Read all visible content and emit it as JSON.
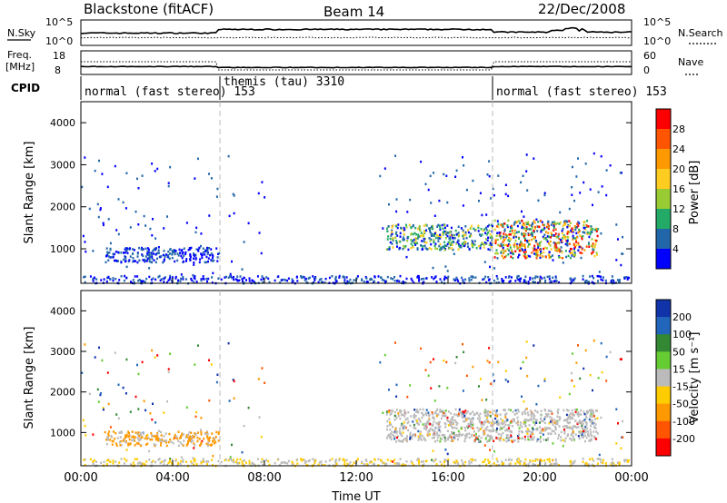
{
  "header": {
    "station": "Blackstone (fitACF)",
    "beam": "Beam 14",
    "date": "22/Dec/2008"
  },
  "noise_panel": {
    "left_label": "N.Sky",
    "right_label": "N.Search",
    "left_ticks": [
      "10^5",
      "10^0"
    ],
    "right_ticks": [
      "10^5",
      "10^0"
    ]
  },
  "freq_panel": {
    "left_label_1": "Freq.",
    "left_label_2": "[MHz]",
    "right_label": "Nave",
    "left_ticks": [
      "18",
      "8"
    ],
    "right_ticks": [
      "60",
      "0"
    ]
  },
  "cpid": {
    "label": "CPID",
    "segments": [
      {
        "text": "normal (fast stereo) 153",
        "start_hour": 0
      },
      {
        "text": "themis (tau) 3310",
        "start_hour": 6
      },
      {
        "text": "normal (fast stereo) 153",
        "start_hour": 18
      }
    ]
  },
  "power_panel": {
    "ylabel": "Slant Range [km]",
    "yticks": [
      "1000",
      "2000",
      "3000",
      "4000"
    ],
    "colorbar_label": "Power [dB]",
    "colorbar_ticks": [
      "28",
      "24",
      "20",
      "16",
      "12",
      "8",
      "4"
    ],
    "colorbar_colors": [
      "#ff0000",
      "#ff5500",
      "#ff9900",
      "#ffcc22",
      "#99cc33",
      "#22aa66",
      "#2266aa",
      "#0000ff"
    ]
  },
  "velocity_panel": {
    "ylabel": "Slant Range [km]",
    "yticks": [
      "1000",
      "2000",
      "3000",
      "4000"
    ],
    "colorbar_label": "Velocity [m s⁻¹]",
    "colorbar_ticks": [
      "200",
      "100",
      "50",
      "15",
      "-15",
      "-50",
      "-100",
      "-200"
    ],
    "colorbar_colors": [
      "#1133aa",
      "#2266bb",
      "#338833",
      "#66cc33",
      "#bbbbbb",
      "#ffcc00",
      "#ff9900",
      "#ff5500",
      "#ff0000"
    ]
  },
  "xaxis": {
    "label": "Time UT",
    "ticks": [
      "00:00",
      "04:00",
      "08:00",
      "12:00",
      "16:00",
      "20:00",
      "00:00"
    ]
  },
  "chart_data": {
    "type": "heatmap",
    "x_range_hours": [
      0,
      24
    ],
    "y_range_km": [
      180,
      4500
    ],
    "mode_change_hours": [
      6,
      18
    ],
    "regions": [
      {
        "panel": "power",
        "t0": 1.0,
        "t1": 6.0,
        "r0": 700,
        "r1": 1050,
        "value_class": "low"
      },
      {
        "panel": "power",
        "t0": 13.3,
        "t1": 17.9,
        "r0": 1000,
        "r1": 1600,
        "value_class": "mixed"
      },
      {
        "panel": "power",
        "t0": 18.0,
        "t1": 22.5,
        "r0": 800,
        "r1": 1700,
        "value_class": "high"
      },
      {
        "panel": "velocity",
        "t0": 1.0,
        "t1": 6.0,
        "r0": 700,
        "r1": 1050,
        "value_class": "slow"
      },
      {
        "panel": "velocity",
        "t0": 13.3,
        "t1": 22.5,
        "r0": 800,
        "r1": 1600,
        "value_class": "ground"
      }
    ]
  }
}
